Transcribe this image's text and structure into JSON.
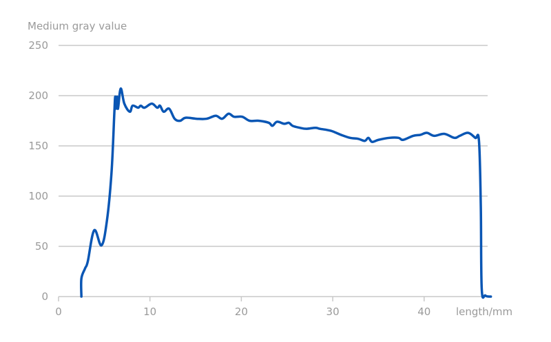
{
  "chart_data": {
    "type": "line",
    "title": "",
    "ylabel": "Medium gray value",
    "xlabel": "length/mm",
    "xlim": [
      0,
      47.5
    ],
    "ylim": [
      0,
      250
    ],
    "xticks": [
      0,
      10,
      20,
      30,
      40
    ],
    "yticks": [
      0,
      50,
      100,
      150,
      200,
      250
    ],
    "grid": "horizontal",
    "colors": {
      "line": "#0a56b4",
      "grid": "#c8c8c8",
      "text": "#9a9a9a"
    },
    "series": [
      {
        "x": [
          2.5,
          2.5,
          2.9,
          3.2,
          3.9,
          4.7,
          5.3,
          5.8,
          6.1,
          6.2,
          6.3,
          6.4,
          6.5,
          6.8,
          7.2,
          7.8,
          8.1,
          8.7,
          9.0,
          9.4,
          10.2,
          10.8,
          11.1,
          11.5,
          12.1,
          12.7,
          13.3,
          13.9,
          15.1,
          16.2,
          17.2,
          17.9,
          18.6,
          19.2,
          20.1,
          20.9,
          21.9,
          23.0,
          23.4,
          23.9,
          24.7,
          25.2,
          25.6,
          26.4,
          27.1,
          28.1,
          28.6,
          29.8,
          30.9,
          31.9,
          32.8,
          33.5,
          33.9,
          34.3,
          35.0,
          36.2,
          37.2,
          37.7,
          38.8,
          39.6,
          40.3,
          41.1,
          42.2,
          43.3,
          43.9,
          44.8,
          45.6,
          46.0,
          46.2,
          46.3,
          46.7,
          47.3
        ],
        "y": [
          0,
          18,
          28,
          35,
          66,
          51,
          76,
          124,
          182,
          199,
          187,
          199,
          187,
          207,
          192,
          184,
          190,
          188,
          190,
          188,
          192,
          188,
          190,
          184,
          187,
          177,
          175,
          178,
          177,
          177,
          180,
          177,
          182,
          179,
          179,
          175,
          175,
          173,
          170,
          174,
          172,
          173,
          170,
          168,
          167,
          168,
          167,
          165,
          161,
          158,
          157,
          155,
          158,
          154,
          156,
          158,
          158,
          156,
          160,
          161,
          163,
          160,
          162,
          158,
          160,
          163,
          158,
          155,
          90,
          8,
          1,
          0
        ]
      }
    ]
  }
}
